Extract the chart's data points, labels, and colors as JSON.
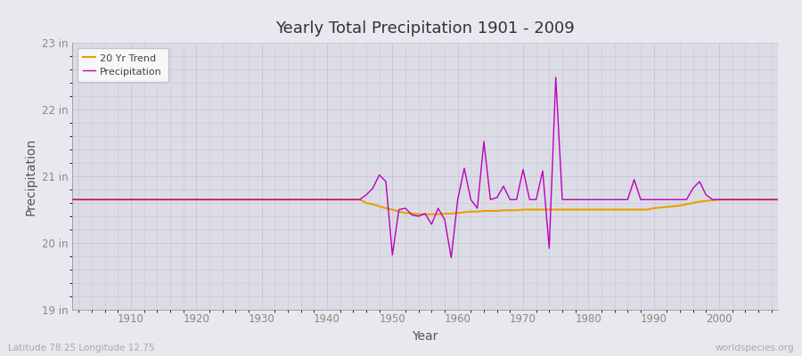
{
  "title": "Yearly Total Precipitation 1901 - 2009",
  "xlabel": "Year",
  "ylabel": "Precipitation",
  "xlim": [
    1901,
    2009
  ],
  "ylim": [
    19,
    23
  ],
  "yticks": [
    19,
    20,
    21,
    22,
    23
  ],
  "ytick_labels": [
    "19 in",
    "20 in",
    "21 in",
    "22 in",
    "23 in"
  ],
  "xticks": [
    1910,
    1920,
    1930,
    1940,
    1950,
    1960,
    1970,
    1980,
    1990,
    2000
  ],
  "bg_color": "#e8e8ee",
  "plot_bg_color": "#dcdce6",
  "grid_color": "#c8c8d8",
  "precip_color": "#bb00bb",
  "trend_color": "#e8a000",
  "subtitle_left": "Latitude 78.25 Longitude 12.75",
  "subtitle_right": "worldspecies.org",
  "years": [
    1901,
    1902,
    1903,
    1904,
    1905,
    1906,
    1907,
    1908,
    1909,
    1910,
    1911,
    1912,
    1913,
    1914,
    1915,
    1916,
    1917,
    1918,
    1919,
    1920,
    1921,
    1922,
    1923,
    1924,
    1925,
    1926,
    1927,
    1928,
    1929,
    1930,
    1931,
    1932,
    1933,
    1934,
    1935,
    1936,
    1937,
    1938,
    1939,
    1940,
    1941,
    1942,
    1943,
    1944,
    1945,
    1946,
    1947,
    1948,
    1949,
    1950,
    1951,
    1952,
    1953,
    1954,
    1955,
    1956,
    1957,
    1958,
    1959,
    1960,
    1961,
    1962,
    1963,
    1964,
    1965,
    1966,
    1967,
    1968,
    1969,
    1970,
    1971,
    1972,
    1973,
    1974,
    1975,
    1976,
    1977,
    1978,
    1979,
    1980,
    1981,
    1982,
    1983,
    1984,
    1985,
    1986,
    1987,
    1988,
    1989,
    1990,
    1991,
    1992,
    1993,
    1994,
    1995,
    1996,
    1997,
    1998,
    1999,
    2000,
    2001,
    2002,
    2003,
    2004,
    2005,
    2006,
    2007,
    2008,
    2009
  ],
  "precip": [
    20.65,
    20.65,
    20.65,
    20.65,
    20.65,
    20.65,
    20.65,
    20.65,
    20.65,
    20.65,
    20.65,
    20.65,
    20.65,
    20.65,
    20.65,
    20.65,
    20.65,
    20.65,
    20.65,
    20.65,
    20.65,
    20.65,
    20.65,
    20.65,
    20.65,
    20.65,
    20.65,
    20.65,
    20.65,
    20.65,
    20.65,
    20.65,
    20.65,
    20.65,
    20.65,
    20.65,
    20.65,
    20.65,
    20.65,
    20.65,
    20.65,
    20.65,
    20.65,
    20.65,
    20.65,
    20.72,
    20.82,
    21.02,
    20.92,
    19.82,
    20.5,
    20.52,
    20.42,
    20.4,
    20.44,
    20.28,
    20.52,
    20.35,
    19.78,
    20.65,
    21.12,
    20.65,
    20.52,
    21.52,
    20.65,
    20.68,
    20.85,
    20.65,
    20.65,
    21.1,
    20.65,
    20.65,
    21.08,
    19.92,
    22.48,
    20.65,
    20.65,
    20.65,
    20.65,
    20.65,
    20.65,
    20.65,
    20.65,
    20.65,
    20.65,
    20.65,
    20.95,
    20.65,
    20.65,
    20.65,
    20.65,
    20.65,
    20.65,
    20.65,
    20.65,
    20.82,
    20.92,
    20.72,
    20.65,
    20.65,
    20.65,
    20.65,
    20.65,
    20.65,
    20.65,
    20.65,
    20.65,
    20.65,
    20.65
  ],
  "trend": [
    20.65,
    20.65,
    20.65,
    20.65,
    20.65,
    20.65,
    20.65,
    20.65,
    20.65,
    20.65,
    20.65,
    20.65,
    20.65,
    20.65,
    20.65,
    20.65,
    20.65,
    20.65,
    20.65,
    20.65,
    20.65,
    20.65,
    20.65,
    20.65,
    20.65,
    20.65,
    20.65,
    20.65,
    20.65,
    20.65,
    20.65,
    20.65,
    20.65,
    20.65,
    20.65,
    20.65,
    20.65,
    20.65,
    20.65,
    20.65,
    20.65,
    20.65,
    20.65,
    20.65,
    20.65,
    20.6,
    20.58,
    20.55,
    20.52,
    20.5,
    20.47,
    20.45,
    20.44,
    20.43,
    20.43,
    20.43,
    20.43,
    20.44,
    20.44,
    20.45,
    20.46,
    20.47,
    20.47,
    20.48,
    20.48,
    20.48,
    20.49,
    20.49,
    20.49,
    20.5,
    20.5,
    20.5,
    20.5,
    20.5,
    20.5,
    20.5,
    20.5,
    20.5,
    20.5,
    20.5,
    20.5,
    20.5,
    20.5,
    20.5,
    20.5,
    20.5,
    20.5,
    20.5,
    20.5,
    20.52,
    20.53,
    20.54,
    20.55,
    20.56,
    20.58,
    20.6,
    20.62,
    20.63,
    20.64,
    20.65,
    20.65,
    20.65,
    20.65,
    20.65,
    20.65,
    20.65,
    20.65,
    20.65,
    20.65
  ]
}
